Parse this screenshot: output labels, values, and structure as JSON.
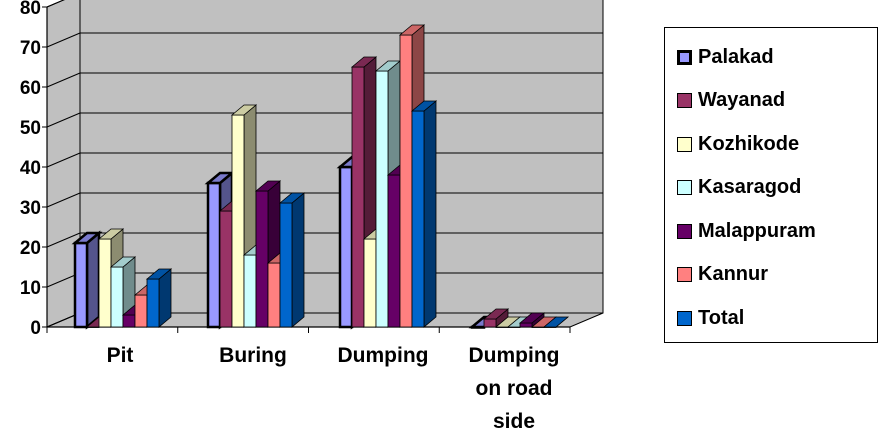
{
  "chart_data": {
    "type": "bar",
    "categories": [
      "Pit",
      "Buring",
      "Dumping",
      "Dumping on road side"
    ],
    "series": [
      {
        "name": "Palakad",
        "values": [
          21,
          36,
          40,
          0
        ]
      },
      {
        "name": "Wayanad",
        "values": [
          0,
          29,
          65,
          2
        ]
      },
      {
        "name": "Kozhikode",
        "values": [
          22,
          53,
          22,
          0
        ]
      },
      {
        "name": "Kasaragod",
        "values": [
          15,
          18,
          64,
          0
        ]
      },
      {
        "name": "Malappuram",
        "values": [
          3,
          34,
          38,
          1
        ]
      },
      {
        "name": "Kannur",
        "values": [
          8,
          16,
          73,
          0
        ]
      },
      {
        "name": "Total",
        "values": [
          12,
          31,
          54,
          0
        ]
      }
    ],
    "colors": [
      "#9999FF",
      "#993366",
      "#FFFFCC",
      "#CCFFFF",
      "#660066",
      "#FF8080",
      "#0066CC"
    ],
    "yticks": [
      "0",
      "10",
      "20",
      "30",
      "40",
      "50",
      "60",
      "70",
      "80"
    ],
    "ylim": [
      0,
      80
    ],
    "grid": true,
    "wall_color": "#C0C0C0",
    "legend_position": "right"
  }
}
